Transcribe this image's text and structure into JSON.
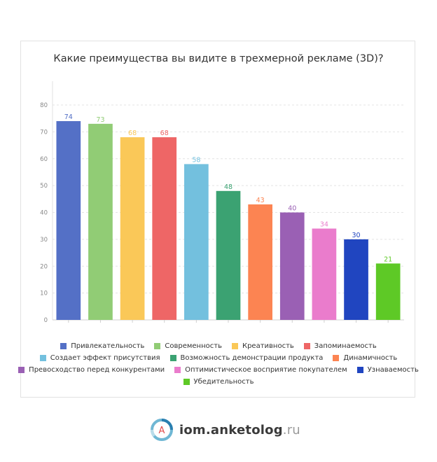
{
  "chart_data": {
    "type": "bar",
    "title": "Какие преимущества вы видите в трехмерной рекламе (3D)?",
    "xlabel": "",
    "ylabel": "",
    "ylim": [
      0,
      80
    ],
    "yticks": [
      0,
      10,
      20,
      30,
      40,
      50,
      60,
      70,
      80
    ],
    "grid": true,
    "categories": [
      "Привлекательность",
      "Современность",
      "Креативность",
      "Запоминаемость",
      "Создает эффект присутствия",
      "Возможность демонстрации продукта",
      "Динамичность",
      "Превосходство перед конкурентами",
      "Оптимистическое восприятие покупателем",
      "Узнаваемость",
      "Убедительность"
    ],
    "values": [
      74,
      73,
      68,
      68,
      58,
      48,
      43,
      40,
      34,
      30,
      21
    ],
    "colors": [
      "#5470c6",
      "#91cc75",
      "#fac858",
      "#ee6666",
      "#73c0de",
      "#3ba272",
      "#fc8452",
      "#9a60b4",
      "#ea7ccc",
      "#2045c0",
      "#5ec926"
    ],
    "legend_position": "bottom"
  },
  "legend_rows": [
    [
      0,
      1,
      2,
      3
    ],
    [
      4,
      5,
      6
    ],
    [
      7,
      8,
      9
    ],
    [
      10
    ]
  ],
  "brand": {
    "logo_letter": "A",
    "name": "iom.anketolog",
    "tld": ".ru"
  }
}
